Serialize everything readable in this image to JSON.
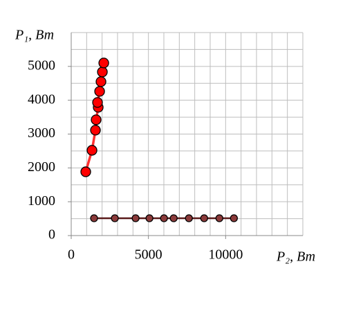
{
  "chart_data": {
    "type": "scatter",
    "xlabel": "P₂, Вт",
    "ylabel": "P₁, Вт",
    "xlim": [
      0,
      15000
    ],
    "ylim": [
      0,
      6000
    ],
    "xticks": [
      0,
      5000,
      10000
    ],
    "yticks": [
      0,
      1000,
      2000,
      3000,
      4000,
      5000
    ],
    "xgrid": [
      1000,
      2000,
      3000,
      4000,
      5000,
      6000,
      7000,
      8000,
      9000,
      10000,
      11000,
      12000,
      13000,
      14000,
      15000
    ],
    "ygrid": [
      500,
      1000,
      1500,
      2000,
      2500,
      3000,
      3500,
      4000,
      4500,
      5000,
      5500,
      6000
    ],
    "grid": true,
    "series": [
      {
        "color": "#ff0000",
        "line_color": "#ff3030",
        "x": [
          942,
          1345,
          1570,
          1614,
          1749,
          1704,
          1839,
          1928,
          2018,
          2108
        ],
        "values": [
          1885,
          2520,
          3115,
          3422,
          3791,
          3934,
          4262,
          4549,
          4836,
          5102
        ]
      },
      {
        "color": "#8b3a3a",
        "line_color": "#5a1a1a",
        "x": [
          1480,
          2825,
          4170,
          5067,
          6009,
          6637,
          7623,
          8610,
          9596,
          10538
        ],
        "values": [
          512,
          512,
          512,
          512,
          512,
          512,
          512,
          512,
          512,
          512
        ]
      }
    ]
  }
}
